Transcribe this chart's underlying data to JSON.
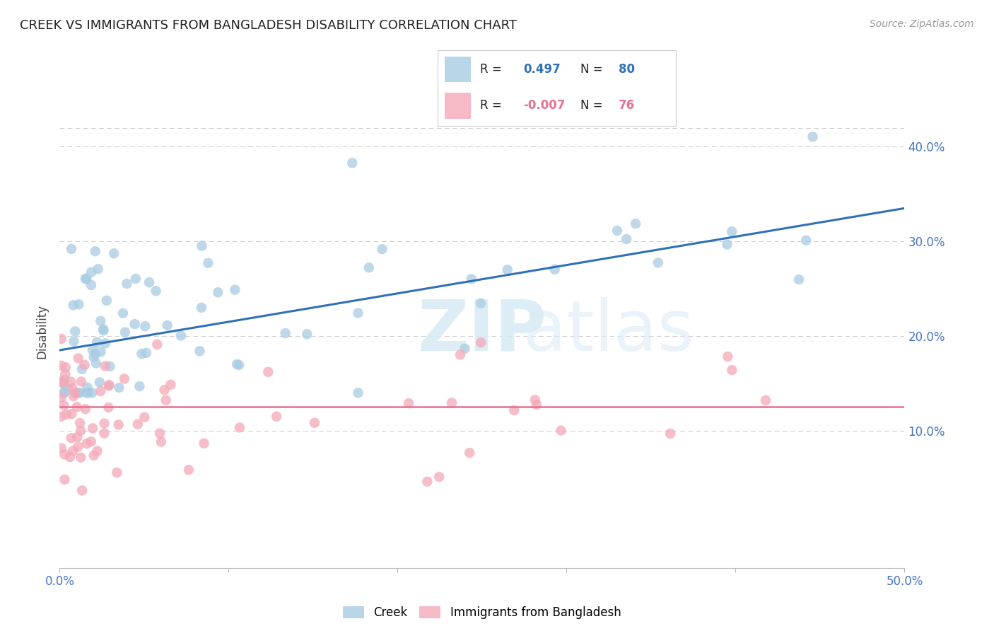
{
  "title": "CREEK VS IMMIGRANTS FROM BANGLADESH DISABILITY CORRELATION CHART",
  "source": "Source: ZipAtlas.com",
  "ylabel": "Disability",
  "xlim": [
    0.0,
    0.5
  ],
  "ylim": [
    -0.045,
    0.455
  ],
  "y_ticks": [
    0.1,
    0.2,
    0.3,
    0.4
  ],
  "y_tick_labels": [
    "10.0%",
    "20.0%",
    "30.0%",
    "40.0%"
  ],
  "creek_R": 0.497,
  "creek_N": 80,
  "bangladesh_R": -0.007,
  "bangladesh_N": 76,
  "creek_color": "#a8cce4",
  "bangladesh_color": "#f4a8b8",
  "creek_line_color": "#3070b8",
  "bangladesh_line_color": "#e87090",
  "grid_color": "#d0d0d0",
  "background_color": "#ffffff",
  "title_color": "#222222",
  "axis_label_color": "#444444",
  "tick_label_color": "#4472c4",
  "legend_text_color": "#222222",
  "legend_value_color": "#3070b8",
  "legend_neg_color": "#e87090",
  "creek_line_start_y": 0.185,
  "creek_line_end_y": 0.335,
  "bangladesh_line_y": 0.125,
  "watermark_color": "#d8eaf5"
}
